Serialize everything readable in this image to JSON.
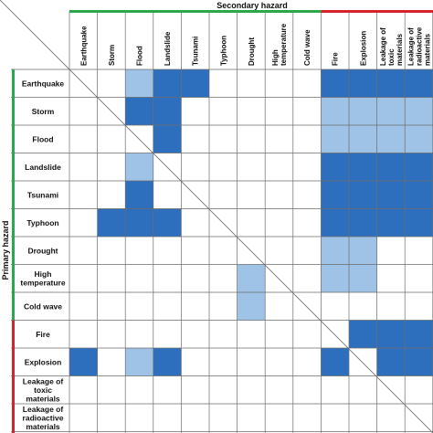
{
  "chart_data": {
    "type": "heatmap",
    "title_columns": "Secondary hazard",
    "title_rows": "Primary hazard",
    "columns": [
      [
        "Earthquake"
      ],
      [
        "Storm"
      ],
      [
        "Flood"
      ],
      [
        "Landslide"
      ],
      [
        "Tsunami"
      ],
      [
        "Typhoon"
      ],
      [
        "Drought"
      ],
      [
        "High",
        "temperature"
      ],
      [
        "Cold wave"
      ],
      [
        "Fire"
      ],
      [
        "Explosion"
      ],
      [
        "Leakage of",
        "toxic",
        "materials"
      ],
      [
        "Leakage of",
        "radioactive",
        "materials"
      ]
    ],
    "rows": [
      [
        "Earthquake"
      ],
      [
        "Storm"
      ],
      [
        "Flood"
      ],
      [
        "Landslide"
      ],
      [
        "Tsunami"
      ],
      [
        "Typhoon"
      ],
      [
        "Drought"
      ],
      [
        "High",
        "temperature"
      ],
      [
        "Cold wave"
      ],
      [
        "Fire"
      ],
      [
        "Explosion"
      ],
      [
        "Leakage of",
        "toxic",
        "materials"
      ],
      [
        "Leakage of",
        "radioactive",
        "materials"
      ]
    ],
    "cells": [
      [
        0,
        0,
        1,
        2,
        2,
        0,
        0,
        0,
        0,
        2,
        2,
        2,
        2
      ],
      [
        0,
        0,
        2,
        2,
        0,
        0,
        0,
        0,
        0,
        1,
        1,
        1,
        1
      ],
      [
        0,
        0,
        0,
        2,
        0,
        0,
        0,
        0,
        0,
        1,
        1,
        1,
        1
      ],
      [
        0,
        0,
        1,
        0,
        0,
        0,
        0,
        0,
        0,
        2,
        2,
        2,
        2
      ],
      [
        0,
        0,
        2,
        0,
        0,
        0,
        0,
        0,
        0,
        2,
        2,
        2,
        2
      ],
      [
        0,
        2,
        2,
        2,
        0,
        0,
        0,
        0,
        0,
        2,
        2,
        2,
        2
      ],
      [
        0,
        0,
        0,
        0,
        0,
        0,
        0,
        0,
        0,
        1,
        1,
        0,
        0
      ],
      [
        0,
        0,
        0,
        0,
        0,
        0,
        1,
        0,
        0,
        1,
        1,
        0,
        0
      ],
      [
        0,
        0,
        0,
        0,
        0,
        0,
        1,
        0,
        0,
        0,
        0,
        0,
        0
      ],
      [
        0,
        0,
        0,
        0,
        0,
        0,
        0,
        0,
        0,
        0,
        2,
        2,
        2
      ],
      [
        2,
        0,
        1,
        2,
        0,
        0,
        0,
        0,
        0,
        2,
        0,
        2,
        2
      ],
      [
        0,
        0,
        0,
        0,
        0,
        0,
        0,
        0,
        0,
        0,
        0,
        0,
        0
      ],
      [
        0,
        0,
        0,
        0,
        0,
        0,
        0,
        0,
        0,
        0,
        0,
        0,
        0
      ]
    ],
    "colors": {
      "none": "#ffffff",
      "light": "#9fc3e6",
      "dark": "#2e6fbd",
      "natural_group": "#2aa84a",
      "technological_group": "#d4232f",
      "grid": "#6d6d6d"
    },
    "group_split_index": 9
  }
}
